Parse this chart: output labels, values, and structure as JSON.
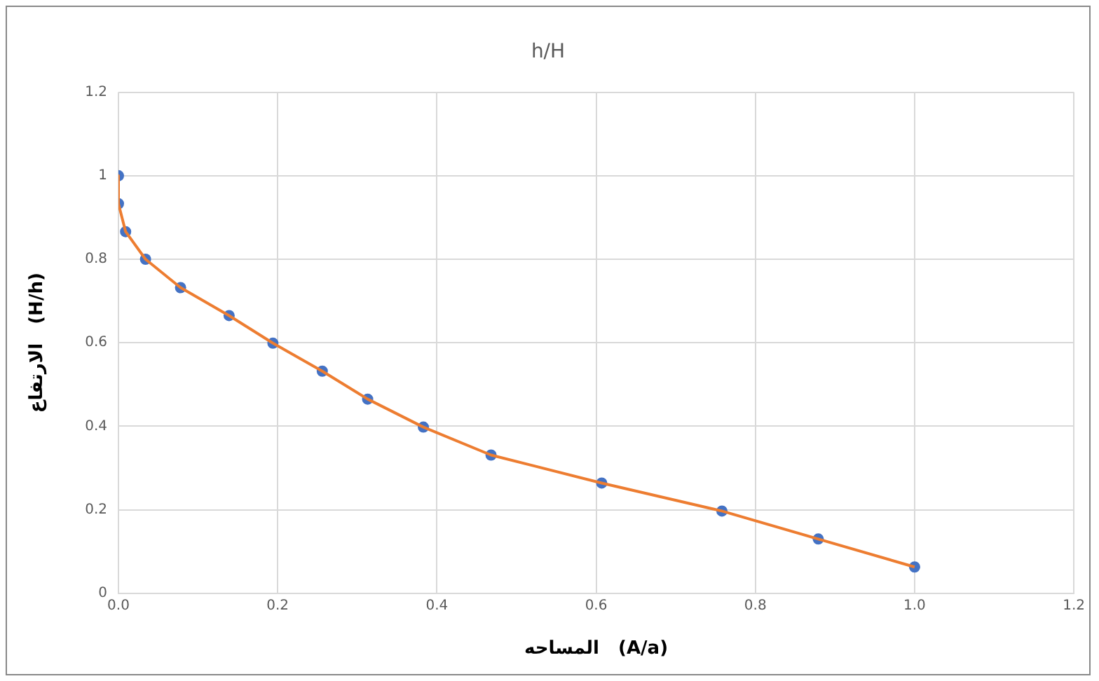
{
  "chart_data": {
    "type": "line",
    "title": "h/H",
    "xlabel": "المساحه   (A/a)",
    "ylabel": "الارتفاع   (H/h)",
    "x": [
      0,
      0,
      0.009,
      0.034,
      0.078,
      0.139,
      0.194,
      0.256,
      0.313,
      0.383,
      0.468,
      0.607,
      0.758,
      0.879,
      1.0
    ],
    "series": [
      {
        "color": "#ed7d31",
        "marker": "none",
        "values": [
          1,
          0.933,
          0.866,
          0.8,
          0.732,
          0.665,
          0.599,
          0.532,
          0.465,
          0.398,
          0.331,
          0.264,
          0.197,
          0.13,
          0.063
        ]
      },
      {
        "type": "scatter",
        "color": "#4472c4",
        "marker": "circle",
        "values": [
          1,
          0.933,
          0.866,
          0.8,
          0.732,
          0.665,
          0.599,
          0.532,
          0.465,
          0.398,
          0.331,
          0.264,
          0.197,
          0.13,
          0.063
        ]
      }
    ],
    "xlim": [
      0,
      1.2
    ],
    "xticks": [
      {
        "value": 0,
        "label": "0.0"
      },
      {
        "value": 0.2,
        "label": "0.2"
      },
      {
        "value": 0.4,
        "label": "0.4"
      },
      {
        "value": 0.6,
        "label": "0.6"
      },
      {
        "value": 0.8,
        "label": "0.8"
      },
      {
        "value": 1,
        "label": "1.0"
      },
      {
        "value": 1.2,
        "label": "1.2"
      }
    ],
    "ylim": [
      0,
      1.2
    ],
    "yticks": [
      0,
      0.2,
      0.4,
      0.6,
      0.8,
      1,
      1.2
    ],
    "grid": true,
    "legend": false
  }
}
